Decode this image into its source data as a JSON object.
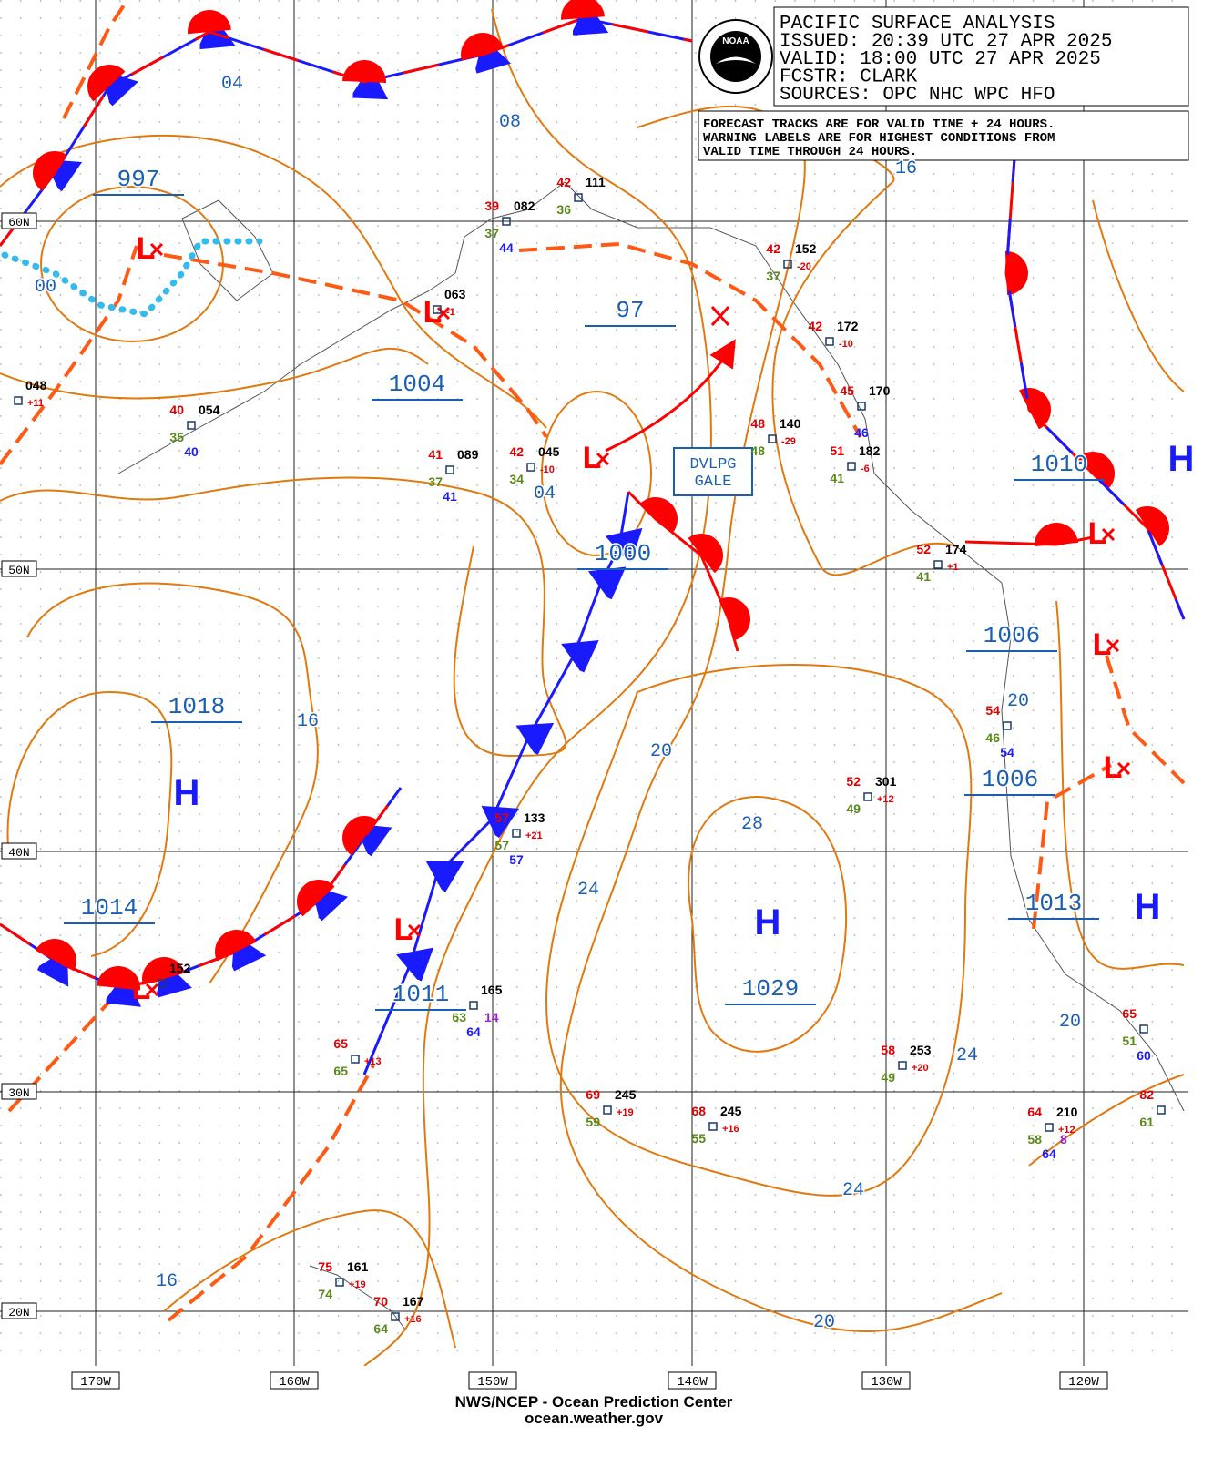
{
  "header": {
    "lines": [
      "PACIFIC SURFACE ANALYSIS",
      "ISSUED: 20:39 UTC 27 APR 2025",
      "VALID:  18:00 UTC 27 APR 2025",
      "FCSTR:  CLARK",
      "SOURCES: OPC NHC WPC HFO"
    ]
  },
  "note": {
    "lines": [
      "FORECAST TRACKS ARE FOR VALID TIME + 24 HOURS.",
      "WARNING LABELS ARE FOR HIGHEST CONDITIONS FROM",
      "VALID TIME THROUGH 24 HOURS."
    ]
  },
  "logo_text": "NOAA",
  "latitude_labels": [
    "60N",
    "50N",
    "40N",
    "30N",
    "20N"
  ],
  "longitude_labels": [
    "170W",
    "160W",
    "150W",
    "140W",
    "130W",
    "120W"
  ],
  "isobar_values": [
    "997",
    "1004",
    "97",
    "1000",
    "1018",
    "1014",
    "1011",
    "1029",
    "1010",
    "1006",
    "1006",
    "1013"
  ],
  "contour_labels": [
    "04",
    "08",
    "00",
    "16",
    "04",
    "20",
    "16",
    "20",
    "28",
    "24",
    "20",
    "24",
    "24",
    "16",
    "20"
  ],
  "pressure_centers": [
    "H",
    "H",
    "H",
    "H",
    "L",
    "L",
    "L",
    "L",
    "L",
    "L",
    "L",
    "L"
  ],
  "warning": {
    "lines": [
      "DVLPG",
      "GALE"
    ]
  },
  "stations": [
    {
      "temp": "40",
      "pressure": "054",
      "dew": "35",
      "sst": "40"
    },
    {
      "pressure": "048",
      "tendency": "+11"
    },
    {
      "temp": "41",
      "pressure": "089",
      "dew": "37",
      "sst": "41"
    },
    {
      "temp": "42",
      "pressure": "045",
      "dew": "34",
      "tendency": "-10"
    },
    {
      "temp": "39",
      "pressure": "082",
      "dew": "37",
      "sst": "44"
    },
    {
      "temp": "42",
      "pressure": "111",
      "dew": "36"
    },
    {
      "pressure": "063",
      "tendency": "-1"
    },
    {
      "temp": "42",
      "pressure": "152",
      "dew": "37",
      "tendency": "-20"
    },
    {
      "temp": "42",
      "pressure": "172",
      "tendency": "-10"
    },
    {
      "temp": "45",
      "pressure": "170",
      "sst": "46"
    },
    {
      "temp": "48",
      "pressure": "140",
      "dew": "48",
      "tendency": "-29"
    },
    {
      "temp": "51",
      "pressure": "182",
      "dew": "41",
      "tendency": "-6"
    },
    {
      "temp": "52",
      "pressure": "174",
      "dew": "41",
      "tendency": "+1"
    },
    {
      "temp": "54",
      "dew": "46",
      "sst": "54"
    },
    {
      "temp": "52",
      "pressure": "301",
      "dew": "49",
      "tendency": "+12"
    },
    {
      "temp": "57",
      "pressure": "133",
      "dew": "57",
      "sst": "57",
      "tendency": "+21"
    },
    {
      "pressure": "152"
    },
    {
      "pressure": "165",
      "dew": "63",
      "sst": "64",
      "other": "14"
    },
    {
      "temp": "65",
      "dew": "65",
      "tendency": "+13"
    },
    {
      "temp": "69",
      "pressure": "245",
      "dew": "59",
      "tendency": "+19"
    },
    {
      "temp": "68",
      "pressure": "245",
      "dew": "55",
      "tendency": "+16"
    },
    {
      "temp": "58",
      "pressure": "253",
      "dew": "49",
      "tendency": "+20"
    },
    {
      "temp": "64",
      "pressure": "210",
      "dew": "58",
      "sst": "64",
      "tendency": "+12",
      "other": "8"
    },
    {
      "temp": "65",
      "dew": "51",
      "sst": "60"
    },
    {
      "temp": "82",
      "dew": "61"
    },
    {
      "temp": "75",
      "pressure": "161",
      "dew": "74",
      "tendency": "+19"
    },
    {
      "temp": "70",
      "pressure": "167",
      "dew": "64",
      "tendency": "+16"
    }
  ],
  "footer": {
    "lines": [
      "NWS/NCEP - Ocean Prediction Center",
      "ocean.weather.gov"
    ]
  }
}
